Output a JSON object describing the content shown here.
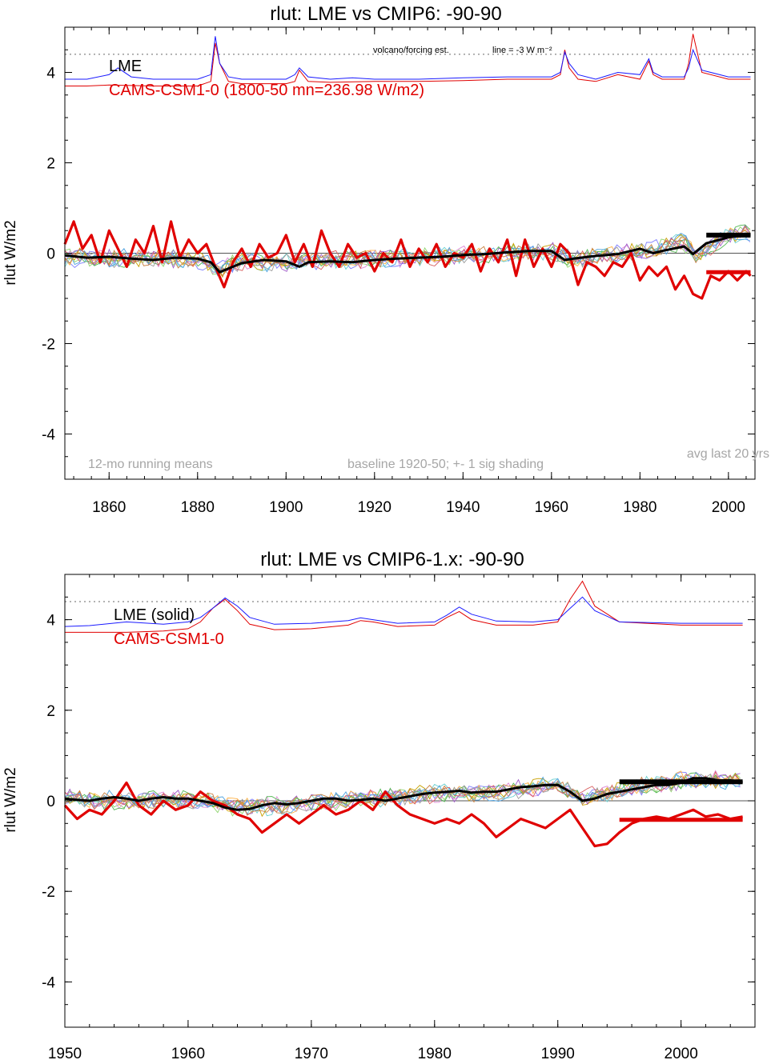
{
  "colors": {
    "lme": "#000000",
    "model": "#e00000",
    "forcing_blue": "#1a1aff",
    "forcing_red": "#e00000",
    "note_gray": "#a6a6a6",
    "ensemble": [
      "#8fd46e",
      "#e08bd9",
      "#7f7fff",
      "#ffb347",
      "#6ad0d0",
      "#c8a000",
      "#a05cc8",
      "#52b852",
      "#d86060",
      "#9a9a9a",
      "#4fa3e0",
      "#c87f3e"
    ]
  },
  "chart_data": [
    {
      "type": "line",
      "title": "rlut: LME vs CMIP6: -90-90",
      "ylabel": "rlut W/m2",
      "xlim": [
        1850,
        2006
      ],
      "ylim": [
        -5,
        5
      ],
      "xticks": [
        1860,
        1880,
        1900,
        1920,
        1940,
        1960,
        1980,
        2000
      ],
      "xtick_labels": [
        "1860",
        "1880",
        "1900",
        "1920",
        "1940",
        "1960",
        "1980",
        "2000"
      ],
      "yticks": [
        -4,
        -2,
        0,
        2,
        4
      ],
      "ytick_labels": [
        "-4",
        "-2",
        "0",
        "2",
        "4"
      ],
      "legend": [
        {
          "label": "LME",
          "color": "#000000"
        },
        {
          "label": "CAMS-CSM1-0 (1800-50 mn=236.98 W/m2)",
          "color": "#e00000"
        }
      ],
      "annotations": {
        "bottom_left": "12-mo running means",
        "bottom_center": "baseline 1920-50; +- 1 sig shading",
        "bottom_right": "avg last 20 yrs",
        "top_note_left": "volcano/forcing est.",
        "top_note_right": "line = -3 W m⁻²"
      },
      "reference_line_y": 4.4,
      "zero_line": 0,
      "series": [
        {
          "role": "ensemble",
          "x": [
            1850,
            1860,
            1870,
            1880,
            1885,
            1890,
            1900,
            1910,
            1920,
            1930,
            1940,
            1950,
            1960,
            1965,
            1970,
            1980,
            1990,
            1993,
            2000,
            2005
          ],
          "y": [
            -0.1,
            -0.12,
            -0.1,
            -0.14,
            -0.35,
            -0.18,
            -0.2,
            -0.16,
            -0.12,
            -0.08,
            -0.05,
            0.0,
            0.05,
            -0.15,
            -0.08,
            0.05,
            0.25,
            -0.05,
            0.4,
            0.45
          ]
        },
        {
          "role": "lme_mean",
          "x": [
            1850,
            1855,
            1860,
            1865,
            1870,
            1875,
            1880,
            1883,
            1885,
            1888,
            1890,
            1895,
            1900,
            1903,
            1905,
            1910,
            1915,
            1920,
            1925,
            1930,
            1935,
            1940,
            1945,
            1950,
            1955,
            1960,
            1963,
            1965,
            1970,
            1975,
            1980,
            1983,
            1985,
            1990,
            1992,
            1995,
            2000,
            2005
          ],
          "y": [
            -0.05,
            -0.1,
            -0.08,
            -0.12,
            -0.15,
            -0.1,
            -0.12,
            -0.2,
            -0.42,
            -0.3,
            -0.22,
            -0.15,
            -0.18,
            -0.3,
            -0.2,
            -0.18,
            -0.2,
            -0.15,
            -0.12,
            -0.1,
            -0.08,
            -0.04,
            -0.02,
            0.02,
            0.05,
            0.05,
            -0.15,
            -0.12,
            -0.06,
            -0.02,
            0.1,
            0.0,
            0.05,
            0.15,
            -0.02,
            0.22,
            0.35,
            0.42
          ]
        },
        {
          "role": "model",
          "x": [
            1850,
            1852,
            1854,
            1856,
            1858,
            1860,
            1862,
            1864,
            1866,
            1868,
            1870,
            1872,
            1874,
            1876,
            1878,
            1880,
            1882,
            1884,
            1886,
            1888,
            1890,
            1892,
            1894,
            1896,
            1898,
            1900,
            1902,
            1904,
            1906,
            1908,
            1910,
            1912,
            1914,
            1916,
            1918,
            1920,
            1922,
            1924,
            1926,
            1928,
            1930,
            1932,
            1934,
            1936,
            1938,
            1940,
            1942,
            1944,
            1946,
            1948,
            1950,
            1952,
            1954,
            1956,
            1958,
            1960,
            1962,
            1964,
            1966,
            1968,
            1970,
            1972,
            1974,
            1976,
            1978,
            1980,
            1982,
            1984,
            1986,
            1988,
            1990,
            1992,
            1994,
            1996,
            1998,
            2000,
            2002,
            2004,
            2005
          ],
          "y": [
            0.2,
            0.7,
            0.1,
            0.4,
            -0.2,
            0.5,
            0.1,
            -0.3,
            0.3,
            0.0,
            0.6,
            -0.2,
            0.7,
            -0.1,
            0.3,
            0.0,
            0.2,
            -0.3,
            -0.75,
            -0.2,
            0.1,
            -0.3,
            0.2,
            -0.1,
            0.0,
            0.4,
            -0.2,
            0.2,
            -0.3,
            0.5,
            0.0,
            -0.3,
            0.2,
            -0.1,
            0.0,
            -0.4,
            0.0,
            -0.2,
            0.3,
            -0.3,
            0.1,
            -0.2,
            0.2,
            -0.3,
            0.0,
            -0.1,
            0.2,
            -0.4,
            0.1,
            -0.2,
            0.3,
            -0.5,
            0.3,
            -0.3,
            0.1,
            -0.3,
            0.2,
            0.0,
            -0.7,
            -0.2,
            -0.3,
            -0.5,
            -0.2,
            -0.3,
            0.0,
            -0.6,
            -0.3,
            -0.5,
            -0.3,
            -0.8,
            -0.5,
            -0.9,
            -1.0,
            -0.5,
            -0.6,
            -0.4,
            -0.6,
            -0.4,
            -0.5
          ]
        },
        {
          "role": "forcing_blue",
          "x": [
            1850,
            1855,
            1860,
            1862,
            1865,
            1870,
            1880,
            1883,
            1884,
            1885,
            1887,
            1890,
            1900,
            1902,
            1903,
            1905,
            1910,
            1915,
            1920,
            1930,
            1940,
            1950,
            1960,
            1962,
            1963,
            1964,
            1966,
            1970,
            1975,
            1980,
            1982,
            1983,
            1985,
            1990,
            1991,
            1992,
            1994,
            2000,
            2005
          ],
          "y": [
            3.85,
            3.85,
            3.95,
            4.1,
            3.9,
            3.85,
            3.85,
            3.95,
            4.8,
            4.2,
            3.9,
            3.85,
            3.85,
            3.95,
            4.1,
            3.9,
            3.85,
            3.88,
            3.85,
            3.85,
            3.88,
            3.9,
            3.9,
            4.0,
            4.45,
            4.2,
            3.95,
            3.85,
            4.0,
            3.95,
            4.3,
            4.0,
            3.9,
            3.9,
            4.1,
            4.5,
            4.05,
            3.9,
            3.9
          ]
        },
        {
          "role": "forcing_red",
          "x": [
            1850,
            1855,
            1860,
            1870,
            1880,
            1883,
            1884,
            1885,
            1887,
            1890,
            1900,
            1902,
            1903,
            1905,
            1910,
            1920,
            1930,
            1940,
            1950,
            1960,
            1962,
            1963,
            1964,
            1966,
            1970,
            1975,
            1980,
            1982,
            1983,
            1985,
            1990,
            1991,
            1992,
            1994,
            2000,
            2005
          ],
          "y": [
            3.7,
            3.7,
            3.72,
            3.7,
            3.7,
            3.8,
            4.65,
            4.2,
            3.8,
            3.75,
            3.75,
            3.8,
            4.05,
            3.8,
            3.78,
            3.8,
            3.8,
            3.82,
            3.85,
            3.85,
            3.95,
            4.5,
            4.1,
            3.85,
            3.8,
            3.95,
            3.85,
            4.25,
            3.95,
            3.85,
            3.85,
            4.2,
            4.85,
            4.0,
            3.85,
            3.85
          ]
        }
      ],
      "avg_last_20": {
        "lme": {
          "x": [
            1995,
            2005
          ],
          "y": 0.4
        },
        "model": {
          "x": [
            1995,
            2005
          ],
          "y": -0.42
        }
      }
    },
    {
      "type": "line",
      "title": "rlut: LME vs CMIP6-1.x: -90-90",
      "ylabel": "rlut W/m2",
      "xlim": [
        1950,
        2006
      ],
      "ylim": [
        -5,
        5
      ],
      "xticks": [
        1950,
        1960,
        1970,
        1980,
        1990,
        2000
      ],
      "xtick_labels": [
        "1950",
        "1960",
        "1970",
        "1980",
        "1990",
        "2000"
      ],
      "yticks": [
        -4,
        -2,
        0,
        2,
        4
      ],
      "ytick_labels": [
        "-4",
        "-2",
        "0",
        "2",
        "4"
      ],
      "legend": [
        {
          "label": "LME (solid)",
          "color": "#000000"
        },
        {
          "label": "CAMS-CSM1-0",
          "color": "#e00000"
        }
      ],
      "reference_line_y": 4.4,
      "zero_line": 0,
      "series": [
        {
          "role": "ensemble",
          "x": [
            1950,
            1955,
            1960,
            1963,
            1965,
            1970,
            1975,
            1980,
            1985,
            1990,
            1992,
            1995,
            2000,
            2005
          ],
          "y": [
            0.05,
            0.0,
            0.05,
            -0.1,
            -0.15,
            -0.05,
            0.05,
            0.15,
            0.2,
            0.35,
            0.05,
            0.25,
            0.45,
            0.45
          ]
        },
        {
          "role": "lme_mean",
          "x": [
            1950,
            1951,
            1952,
            1953,
            1954,
            1955,
            1956,
            1957,
            1958,
            1959,
            1960,
            1961,
            1962,
            1963,
            1964,
            1965,
            1966,
            1967,
            1968,
            1969,
            1970,
            1971,
            1972,
            1973,
            1974,
            1975,
            1976,
            1977,
            1978,
            1979,
            1980,
            1981,
            1982,
            1983,
            1984,
            1985,
            1986,
            1987,
            1988,
            1989,
            1990,
            1991,
            1992,
            1993,
            1994,
            1995,
            1996,
            1997,
            1998,
            1999,
            2000,
            2001,
            2002,
            2003,
            2004,
            2005
          ],
          "y": [
            0.05,
            0.02,
            0.0,
            0.05,
            0.08,
            0.05,
            0.0,
            0.05,
            0.08,
            0.05,
            0.05,
            0.0,
            -0.05,
            -0.15,
            -0.2,
            -0.18,
            -0.1,
            -0.05,
            -0.08,
            -0.05,
            0.0,
            0.05,
            0.05,
            0.0,
            0.02,
            0.05,
            0.0,
            0.05,
            0.1,
            0.15,
            0.18,
            0.2,
            0.22,
            0.18,
            0.2,
            0.2,
            0.25,
            0.3,
            0.32,
            0.35,
            0.35,
            0.2,
            0.0,
            0.05,
            0.15,
            0.2,
            0.25,
            0.3,
            0.35,
            0.35,
            0.4,
            0.5,
            0.5,
            0.45,
            0.45,
            0.4
          ]
        },
        {
          "role": "model",
          "x": [
            1950,
            1951,
            1952,
            1953,
            1954,
            1955,
            1956,
            1957,
            1958,
            1959,
            1960,
            1961,
            1962,
            1963,
            1964,
            1965,
            1966,
            1967,
            1968,
            1969,
            1970,
            1971,
            1972,
            1973,
            1974,
            1975,
            1976,
            1977,
            1978,
            1979,
            1980,
            1981,
            1982,
            1983,
            1984,
            1985,
            1986,
            1987,
            1988,
            1989,
            1990,
            1991,
            1992,
            1993,
            1994,
            1995,
            1996,
            1997,
            1998,
            1999,
            2000,
            2001,
            2002,
            2003,
            2004,
            2005
          ],
          "y": [
            -0.1,
            -0.4,
            -0.2,
            -0.3,
            0.0,
            0.4,
            -0.1,
            -0.3,
            0.0,
            -0.2,
            -0.1,
            0.2,
            0.0,
            -0.1,
            -0.3,
            -0.4,
            -0.7,
            -0.5,
            -0.3,
            -0.5,
            -0.3,
            -0.1,
            -0.3,
            -0.2,
            0.0,
            -0.2,
            0.2,
            -0.1,
            -0.3,
            -0.4,
            -0.5,
            -0.4,
            -0.5,
            -0.3,
            -0.5,
            -0.8,
            -0.6,
            -0.4,
            -0.5,
            -0.6,
            -0.4,
            -0.2,
            -0.6,
            -1.0,
            -0.95,
            -0.7,
            -0.5,
            -0.4,
            -0.35,
            -0.4,
            -0.3,
            -0.2,
            -0.35,
            -0.3,
            -0.4,
            -0.35
          ]
        },
        {
          "role": "forcing_blue",
          "x": [
            1950,
            1952,
            1955,
            1958,
            1960,
            1961,
            1962,
            1963,
            1964,
            1965,
            1967,
            1970,
            1973,
            1974,
            1975,
            1977,
            1980,
            1981,
            1982,
            1983,
            1985,
            1988,
            1990,
            1991,
            1992,
            1993,
            1995,
            2000,
            2005
          ],
          "y": [
            3.85,
            3.87,
            3.95,
            3.9,
            3.95,
            4.05,
            4.25,
            4.48,
            4.3,
            4.05,
            3.9,
            3.92,
            3.98,
            4.04,
            4.0,
            3.92,
            3.95,
            4.1,
            4.28,
            4.12,
            3.97,
            3.95,
            4.0,
            4.25,
            4.5,
            4.2,
            3.95,
            3.92,
            3.92
          ]
        },
        {
          "role": "forcing_red",
          "x": [
            1950,
            1952,
            1955,
            1958,
            1960,
            1961,
            1962,
            1963,
            1964,
            1965,
            1967,
            1970,
            1973,
            1974,
            1975,
            1977,
            1980,
            1981,
            1982,
            1983,
            1985,
            1988,
            1990,
            1991,
            1992,
            1993,
            1995,
            2000,
            2005
          ],
          "y": [
            3.72,
            3.72,
            3.72,
            3.75,
            3.8,
            3.95,
            4.25,
            4.45,
            4.2,
            3.9,
            3.78,
            3.8,
            3.88,
            3.98,
            3.95,
            3.85,
            3.88,
            4.05,
            4.18,
            4.0,
            3.88,
            3.88,
            3.95,
            4.45,
            4.85,
            4.3,
            3.95,
            3.88,
            3.88
          ]
        }
      ],
      "avg_last_20": {
        "lme": {
          "x": [
            1995,
            2005
          ],
          "y": 0.42
        },
        "model": {
          "x": [
            1995,
            2005
          ],
          "y": -0.42
        }
      }
    }
  ]
}
